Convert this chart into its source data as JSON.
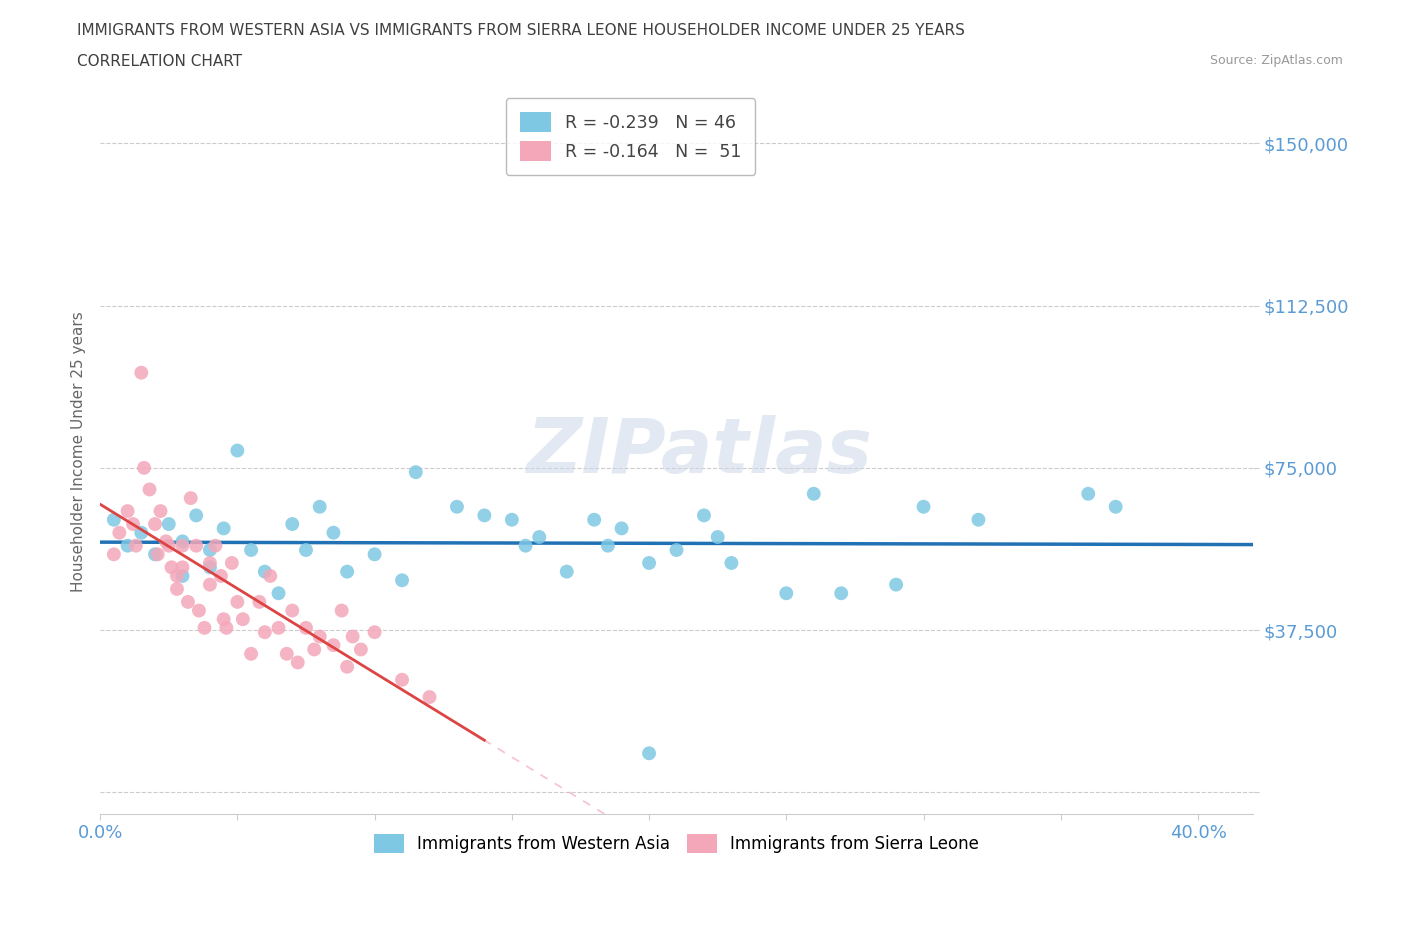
{
  "title_line1": "IMMIGRANTS FROM WESTERN ASIA VS IMMIGRANTS FROM SIERRA LEONE HOUSEHOLDER INCOME UNDER 25 YEARS",
  "title_line2": "CORRELATION CHART",
  "source_text": "Source: ZipAtlas.com",
  "ylabel": "Householder Income Under 25 years",
  "xlim": [
    0.0,
    0.42
  ],
  "ylim": [
    -5000,
    162500
  ],
  "yticks": [
    0,
    37500,
    75000,
    112500,
    150000
  ],
  "ytick_labels": [
    "",
    "$37,500",
    "$75,000",
    "$112,500",
    "$150,000"
  ],
  "xticks": [
    0.0,
    0.05,
    0.1,
    0.15,
    0.2,
    0.25,
    0.3,
    0.35,
    0.4
  ],
  "xtick_labels": [
    "0.0%",
    "",
    "",
    "",
    "",
    "",
    "",
    "",
    "40.0%"
  ],
  "color_western_asia": "#7ec8e3",
  "color_sierra_leone": "#f4a7b9",
  "trendline_wa_color": "#2171b5",
  "trendline_sl_solid_color": "#d44",
  "trendline_sl_dashed_color": "#f4a7b9",
  "legend_r_wa": "R = -0.239",
  "legend_n_wa": "N = 46",
  "legend_r_sl": "R = -0.164",
  "legend_n_sl": "N = 51",
  "watermark": "ZIPatlas",
  "bg_color": "#ffffff",
  "grid_color": "#cccccc",
  "axis_label_color": "#5b9bd5",
  "title_color": "#404040",
  "wa_x": [
    0.005,
    0.01,
    0.015,
    0.02,
    0.025,
    0.03,
    0.03,
    0.035,
    0.04,
    0.04,
    0.045,
    0.05,
    0.055,
    0.06,
    0.065,
    0.07,
    0.075,
    0.08,
    0.085,
    0.09,
    0.1,
    0.11,
    0.115,
    0.13,
    0.14,
    0.15,
    0.155,
    0.16,
    0.17,
    0.18,
    0.185,
    0.19,
    0.2,
    0.21,
    0.22,
    0.225,
    0.23,
    0.25,
    0.26,
    0.27,
    0.29,
    0.3,
    0.32,
    0.36,
    0.37,
    0.2
  ],
  "wa_y": [
    63000,
    57000,
    60000,
    55000,
    62000,
    58000,
    50000,
    64000,
    56000,
    52000,
    61000,
    79000,
    56000,
    51000,
    46000,
    62000,
    56000,
    66000,
    60000,
    51000,
    55000,
    49000,
    74000,
    66000,
    64000,
    63000,
    57000,
    59000,
    51000,
    63000,
    57000,
    61000,
    53000,
    56000,
    64000,
    59000,
    53000,
    46000,
    69000,
    46000,
    48000,
    66000,
    63000,
    69000,
    66000,
    9000
  ],
  "sl_x": [
    0.005,
    0.007,
    0.01,
    0.012,
    0.013,
    0.015,
    0.016,
    0.018,
    0.02,
    0.021,
    0.022,
    0.024,
    0.025,
    0.026,
    0.028,
    0.028,
    0.03,
    0.03,
    0.032,
    0.033,
    0.035,
    0.036,
    0.038,
    0.04,
    0.04,
    0.042,
    0.044,
    0.045,
    0.046,
    0.048,
    0.05,
    0.052,
    0.055,
    0.058,
    0.06,
    0.062,
    0.065,
    0.068,
    0.07,
    0.072,
    0.075,
    0.078,
    0.08,
    0.085,
    0.088,
    0.09,
    0.092,
    0.095,
    0.1,
    0.11,
    0.12
  ],
  "sl_y": [
    55000,
    60000,
    65000,
    62000,
    57000,
    97000,
    75000,
    70000,
    62000,
    55000,
    65000,
    58000,
    57000,
    52000,
    50000,
    47000,
    57000,
    52000,
    44000,
    68000,
    57000,
    42000,
    38000,
    53000,
    48000,
    57000,
    50000,
    40000,
    38000,
    53000,
    44000,
    40000,
    32000,
    44000,
    37000,
    50000,
    38000,
    32000,
    42000,
    30000,
    38000,
    33000,
    36000,
    34000,
    42000,
    29000,
    36000,
    33000,
    37000,
    26000,
    22000
  ]
}
